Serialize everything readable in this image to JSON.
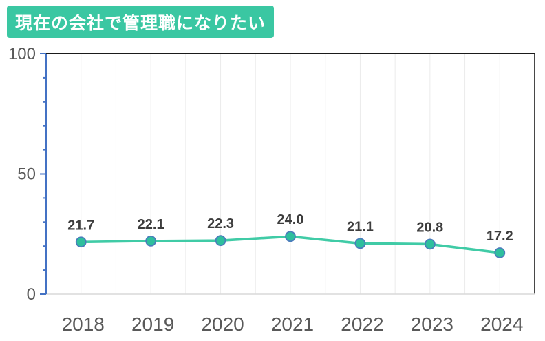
{
  "title_badge": {
    "text": "現在の会社で管理職になりたい",
    "bg_color": "#3ac7a2",
    "text_color": "#ffffff"
  },
  "chart_data": {
    "type": "line",
    "title": "現在の会社で管理職になりたい",
    "categories": [
      "2018",
      "2019",
      "2020",
      "2021",
      "2022",
      "2023",
      "2024"
    ],
    "values": [
      21.7,
      22.1,
      22.3,
      24.0,
      21.1,
      20.8,
      17.2
    ],
    "data_labels": [
      "21.7",
      "22.1",
      "22.3",
      "24.0",
      "21.1",
      "20.8",
      "17.2"
    ],
    "xlabel": "",
    "ylabel": "",
    "ylim": [
      0,
      100
    ],
    "ytick_labels": [
      0,
      50,
      100
    ],
    "ytick_minor_step": 10,
    "grid": {
      "vertical_half_step": true,
      "horizontal_at": [
        50
      ]
    },
    "legend": "none",
    "colors": {
      "line": "#40cba6",
      "marker_fill": "#2ebf9d",
      "marker_stroke": "#4a7dbb",
      "axis_left": "#4472c4",
      "border_top": "#1a1a1a",
      "border_right": "#1a1a1a",
      "axis_bottom": "#d9d9d9",
      "gridline": "#ebebeb",
      "gridline_50": "#e2e2e2",
      "tick_label": "#595959",
      "data_label": "#3d3d3d"
    }
  }
}
